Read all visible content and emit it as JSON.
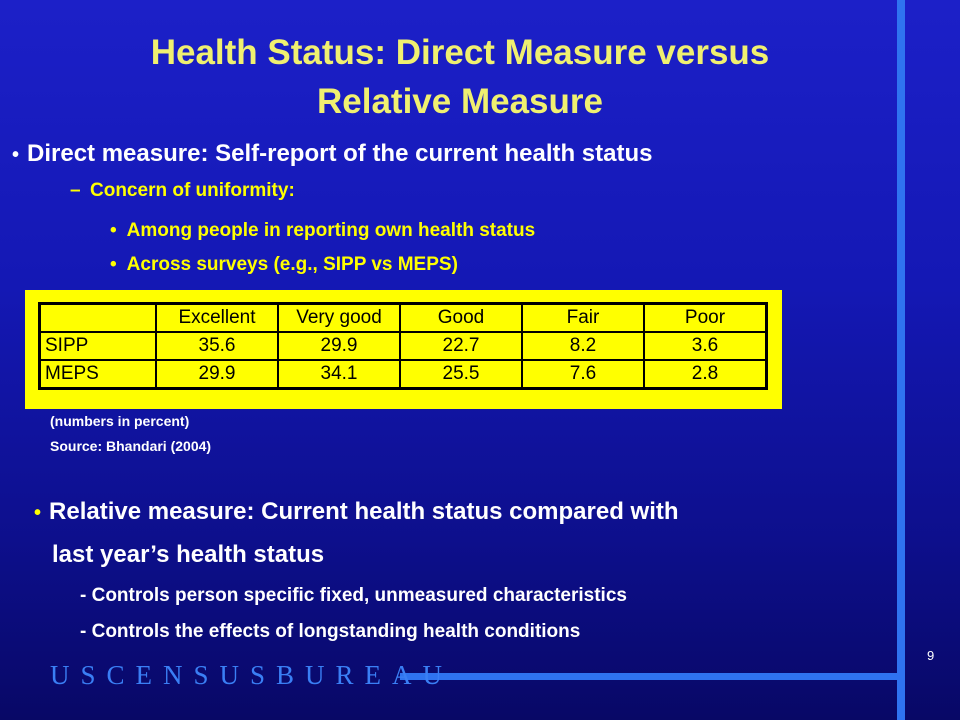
{
  "slide": {
    "title_line1": "Health Status: Direct Measure versus",
    "title_line2": "Relative Measure",
    "bullet1": "Direct measure: Self-report of the current health status",
    "dash1": "Concern of uniformity:",
    "sub1": "Among people in reporting own health status",
    "sub2": "Across surveys (e.g., SIPP vs MEPS)",
    "note1": "(numbers in percent)",
    "note2": "Source: Bhandari (2004)",
    "bullet2_line1": "Relative measure: Current health status compared with",
    "bullet2_line2": "last year’s health status",
    "control1": "- Controls person specific fixed, unmeasured characteristics",
    "control2": "- Controls the effects of longstanding health conditions",
    "logo": "USCENSUSBUREAU",
    "page_number": "9"
  },
  "table": {
    "headers": [
      "Excellent",
      "Very good",
      "Good",
      "Fair",
      "Poor"
    ],
    "rows": [
      {
        "label": "SIPP",
        "values": [
          "35.6",
          "29.9",
          "22.7",
          "8.2",
          "3.6"
        ]
      },
      {
        "label": "MEPS",
        "values": [
          "29.9",
          "34.1",
          "25.5",
          "7.6",
          "2.8"
        ]
      }
    ]
  },
  "colors": {
    "background": "#1418b4",
    "title": "#f0f070",
    "accent_yellow": "#ffff00",
    "accent_blue": "#2f73f0"
  }
}
